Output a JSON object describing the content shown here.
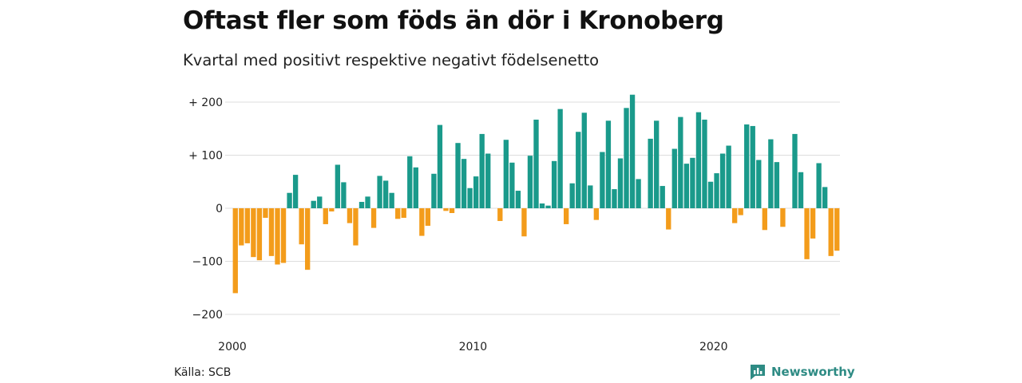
{
  "title": "Oftast fler som föds än dör i Kronoberg",
  "subtitle": "Kvartal med positivt respektive negativt födelsenetto",
  "source": "Källa: SCB",
  "brand": "Newsworthy",
  "colors": {
    "positive": "#1a9a8b",
    "negative": "#f39c1b",
    "grid": "#dddddd",
    "brand": "#2e8b84"
  },
  "chart_data": {
    "type": "bar",
    "x_tick_labels": [
      "2000",
      "2010",
      "2020"
    ],
    "y_tick_labels": [
      "+ 200",
      "+ 100",
      "0",
      "−100",
      "−200"
    ],
    "y_ticks": [
      200,
      100,
      0,
      -100,
      -200
    ],
    "ylim": [
      -200,
      200
    ],
    "xlim": [
      2000.0,
      2025.25
    ],
    "grid": true,
    "series": [
      {
        "values": [
          -160,
          -70,
          -66,
          -92,
          -98,
          -18,
          -90,
          -106,
          -103,
          29,
          63,
          -68,
          -116,
          14,
          22,
          -30,
          -6,
          82,
          49,
          -28,
          -70,
          12,
          22,
          -37,
          61,
          52,
          29,
          -20,
          -18,
          98,
          77,
          -52,
          -33,
          65,
          157,
          -5,
          -9,
          123,
          93,
          38,
          60,
          140,
          103,
          0,
          -24,
          129,
          86,
          33,
          -53,
          99,
          167,
          9,
          5,
          89,
          187,
          -30,
          47,
          144,
          180,
          43,
          -22,
          106,
          165,
          36,
          94,
          189,
          214,
          55,
          0,
          131,
          165,
          42,
          -40,
          112,
          172,
          84,
          95,
          181,
          167,
          50,
          66,
          103,
          118,
          -28,
          -13,
          158,
          155,
          91,
          -41,
          130,
          87,
          -35,
          0,
          140,
          68,
          -96,
          -57,
          85,
          40,
          -90,
          -80
        ]
      }
    ]
  }
}
